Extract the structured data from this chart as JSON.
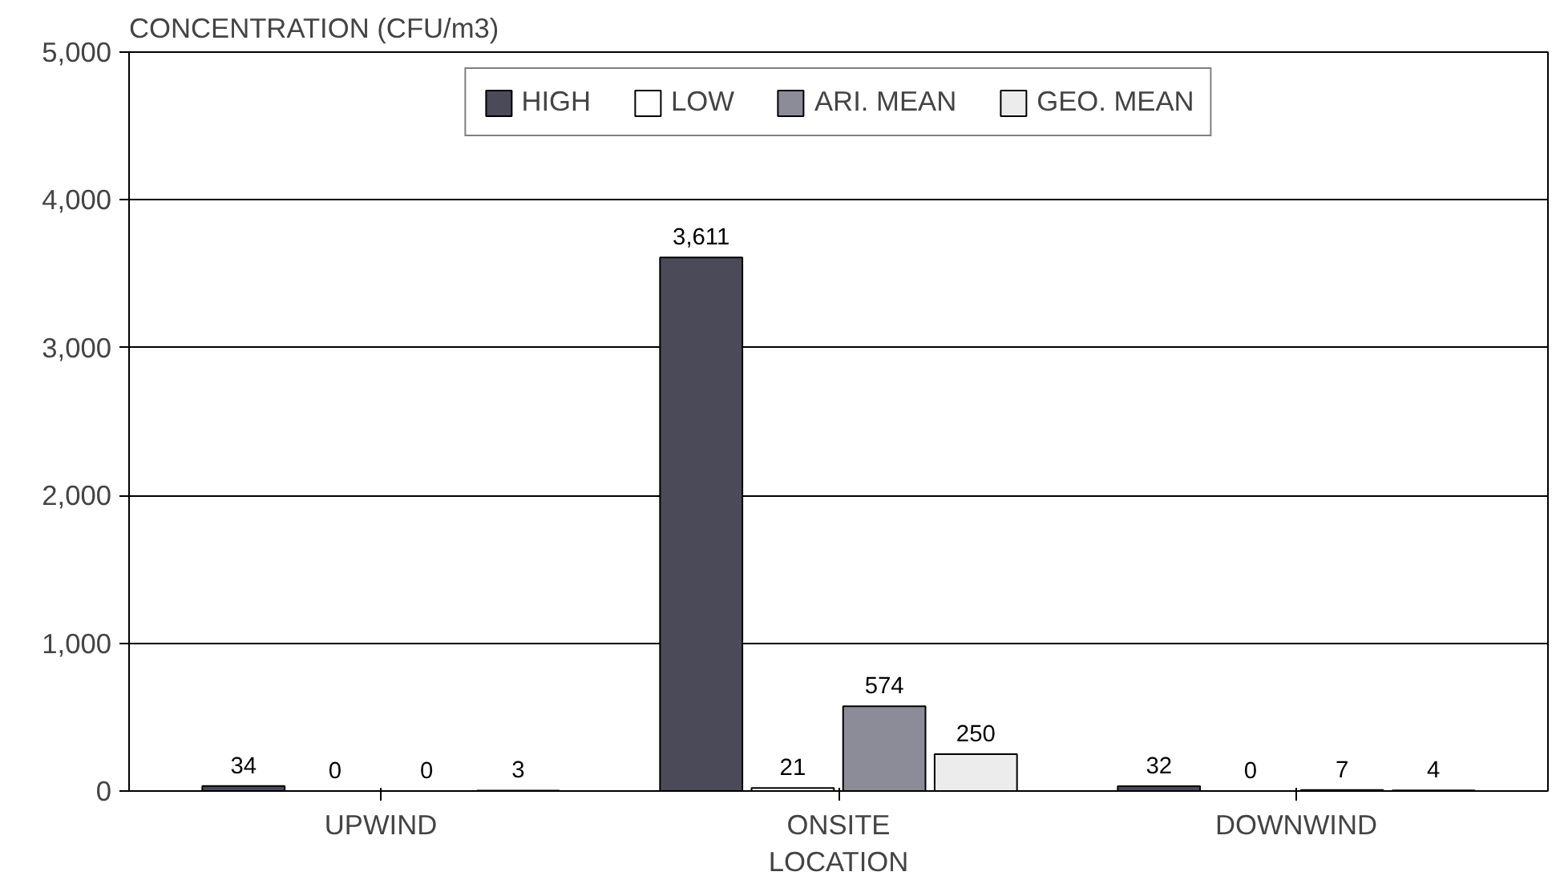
{
  "chart_data": {
    "type": "bar",
    "ylabel": "CONCENTRATION (CFU/m3)",
    "xlabel": "LOCATION",
    "categories": [
      "UPWIND",
      "ONSITE",
      "DOWNWIND"
    ],
    "series": [
      {
        "name": "HIGH",
        "color": "#4a4a58",
        "values": [
          34,
          3611,
          32
        ],
        "value_labels": [
          "34",
          "3,611",
          "32"
        ]
      },
      {
        "name": "LOW",
        "color": "#ffffff",
        "values": [
          0,
          21,
          0
        ],
        "value_labels": [
          "0",
          "21",
          "0"
        ]
      },
      {
        "name": "ARI. MEAN",
        "color": "#8c8c99",
        "values": [
          0,
          574,
          7
        ],
        "value_labels": [
          "0",
          "574",
          "7"
        ]
      },
      {
        "name": "GEO. MEAN",
        "color": "#ececec",
        "values": [
          3,
          250,
          4
        ],
        "value_labels": [
          "3",
          "250",
          "4"
        ]
      }
    ],
    "ylim": [
      0,
      5000
    ],
    "yticks": [
      {
        "value": 0,
        "label": "0"
      },
      {
        "value": 1000,
        "label": "1,000"
      },
      {
        "value": 2000,
        "label": "2,000"
      },
      {
        "value": 3000,
        "label": "3,000"
      },
      {
        "value": 4000,
        "label": "4,000"
      },
      {
        "value": 5000,
        "label": "5,000"
      }
    ],
    "grid": "y",
    "legend": "top"
  }
}
